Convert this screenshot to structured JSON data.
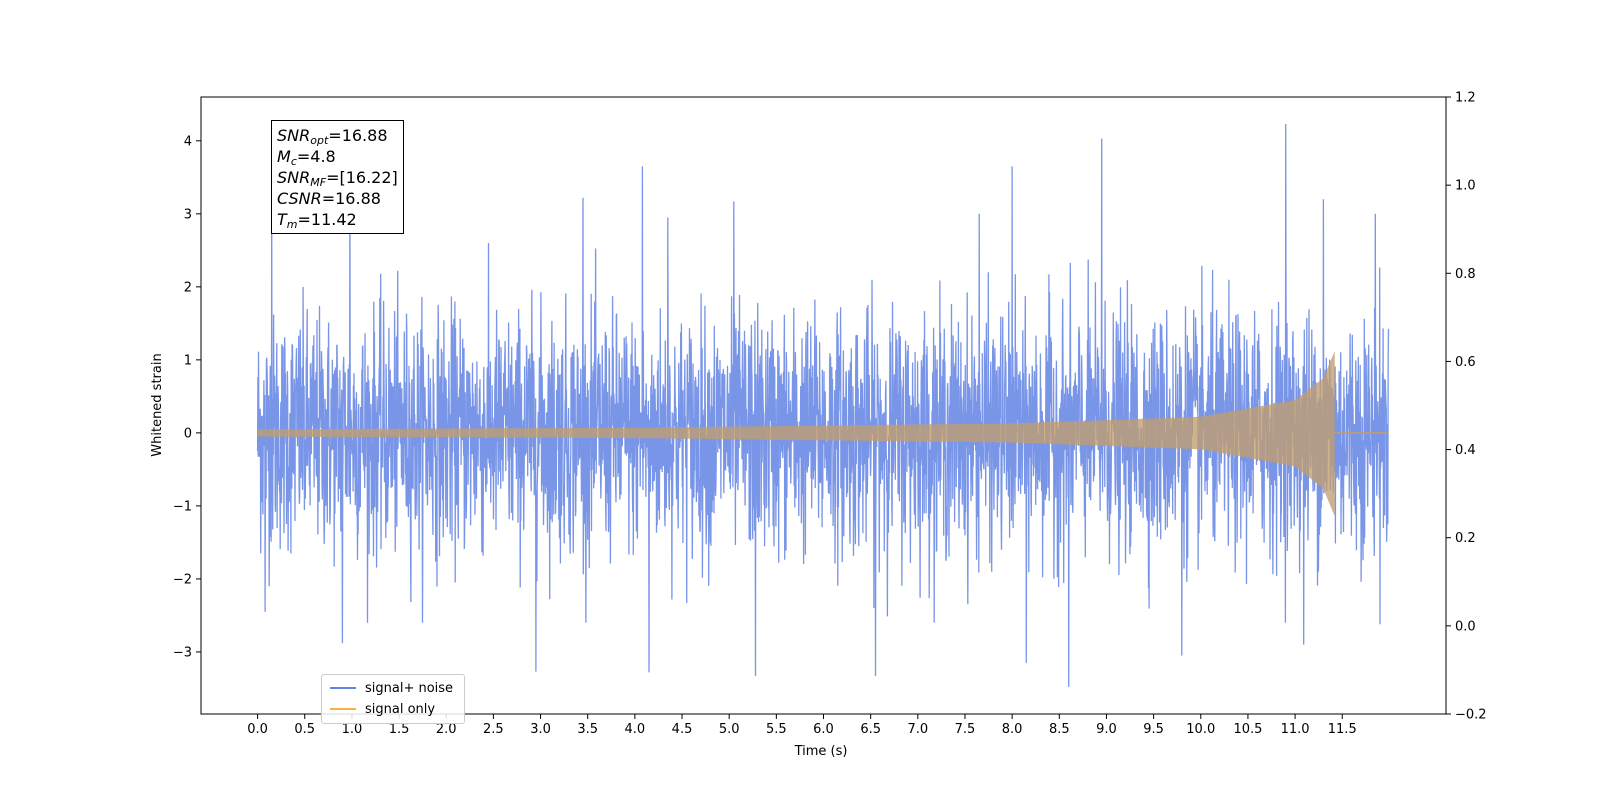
{
  "chart_data": {
    "type": "line",
    "title": "",
    "xlabel": "Time (s)",
    "ylabel": "Whitened strain",
    "xlim": [
      -0.6,
      12.6
    ],
    "ylim": [
      -3.85,
      4.6
    ],
    "ylim_right": [
      -0.2,
      1.2
    ],
    "x_ticks": [
      "0.0",
      "0.5",
      "1.0",
      "1.5",
      "2.0",
      "2.5",
      "3.0",
      "3.5",
      "4.0",
      "4.5",
      "5.0",
      "5.5",
      "6.0",
      "6.5",
      "7.0",
      "7.5",
      "8.0",
      "8.5",
      "9.0",
      "9.5",
      "10.0",
      "10.5",
      "11.0",
      "11.5"
    ],
    "y_ticks": [
      "−3",
      "−2",
      "−1",
      "0",
      "1",
      "2",
      "3",
      "4"
    ],
    "y_ticks_right": [
      "−0.2",
      "0.0",
      "0.2",
      "0.4",
      "0.6",
      "0.8",
      "1.0",
      "1.2"
    ],
    "grid": false,
    "legend_position": "lower-left",
    "series": [
      {
        "name": "signal+ noise",
        "color": "#6283e3",
        "description_of_values": "whitened noise plus chirp, from 0.0 s to 11.99 s",
        "x_range": [
          0.0,
          11.99
        ],
        "typical_envelope": [
          -1.6,
          1.6
        ],
        "peaks": [
          {
            "x": 0.15,
            "y": 3.02
          },
          {
            "x": 0.98,
            "y": 3.55
          },
          {
            "x": 3.45,
            "y": 3.22
          },
          {
            "x": 4.08,
            "y": 3.65
          },
          {
            "x": 4.35,
            "y": 2.95
          },
          {
            "x": 5.05,
            "y": 3.17
          },
          {
            "x": 7.65,
            "y": 3.0
          },
          {
            "x": 8.0,
            "y": 3.65
          },
          {
            "x": 8.95,
            "y": 4.03
          },
          {
            "x": 10.9,
            "y": 4.23
          },
          {
            "x": 11.3,
            "y": 3.2
          },
          {
            "x": 11.85,
            "y": 3.0
          }
        ],
        "troughs": [
          {
            "x": 0.08,
            "y": -2.45
          },
          {
            "x": 0.9,
            "y": -2.88
          },
          {
            "x": 2.95,
            "y": -3.27
          },
          {
            "x": 4.15,
            "y": -3.28
          },
          {
            "x": 5.28,
            "y": -3.33
          },
          {
            "x": 6.55,
            "y": -3.33
          },
          {
            "x": 8.6,
            "y": -3.48
          },
          {
            "x": 8.15,
            "y": -3.15
          },
          {
            "x": 9.8,
            "y": -3.05
          },
          {
            "x": 11.09,
            "y": -2.9
          },
          {
            "x": 11.9,
            "y": -2.62
          }
        ]
      },
      {
        "name": "signal only",
        "color": "#f5b342",
        "description_of_values": "inspiral chirp, amplitude growing until merger then zero",
        "merger_time": 11.42,
        "amplitude_start": 0.05,
        "amplitude_peak": 1.12,
        "amplitude_points": [
          {
            "x": 0.0,
            "amp": 0.05
          },
          {
            "x": 4.0,
            "amp": 0.07
          },
          {
            "x": 8.0,
            "amp": 0.13
          },
          {
            "x": 10.0,
            "amp": 0.22
          },
          {
            "x": 11.0,
            "amp": 0.45
          },
          {
            "x": 11.3,
            "amp": 0.75
          },
          {
            "x": 11.42,
            "amp": 1.12
          }
        ]
      }
    ],
    "legend": [
      {
        "label": "signal+ noise",
        "color": "#6283e3"
      },
      {
        "label": "signal only",
        "color": "#f5b342"
      }
    ],
    "annotation": {
      "snr_opt": {
        "sym": "SNR",
        "sub": "opt",
        "value": "=16.88"
      },
      "mc": {
        "sym": "M",
        "sub": "c",
        "value": "=4.8"
      },
      "snr_mf": {
        "sym": "SNR",
        "sub": "MF",
        "value": "=[16.22]"
      },
      "csnr": {
        "sym": "CSNR",
        "sub": "",
        "value": "=16.88"
      },
      "tm": {
        "sym": "T",
        "sub": "m",
        "value": "=11.42"
      }
    }
  }
}
